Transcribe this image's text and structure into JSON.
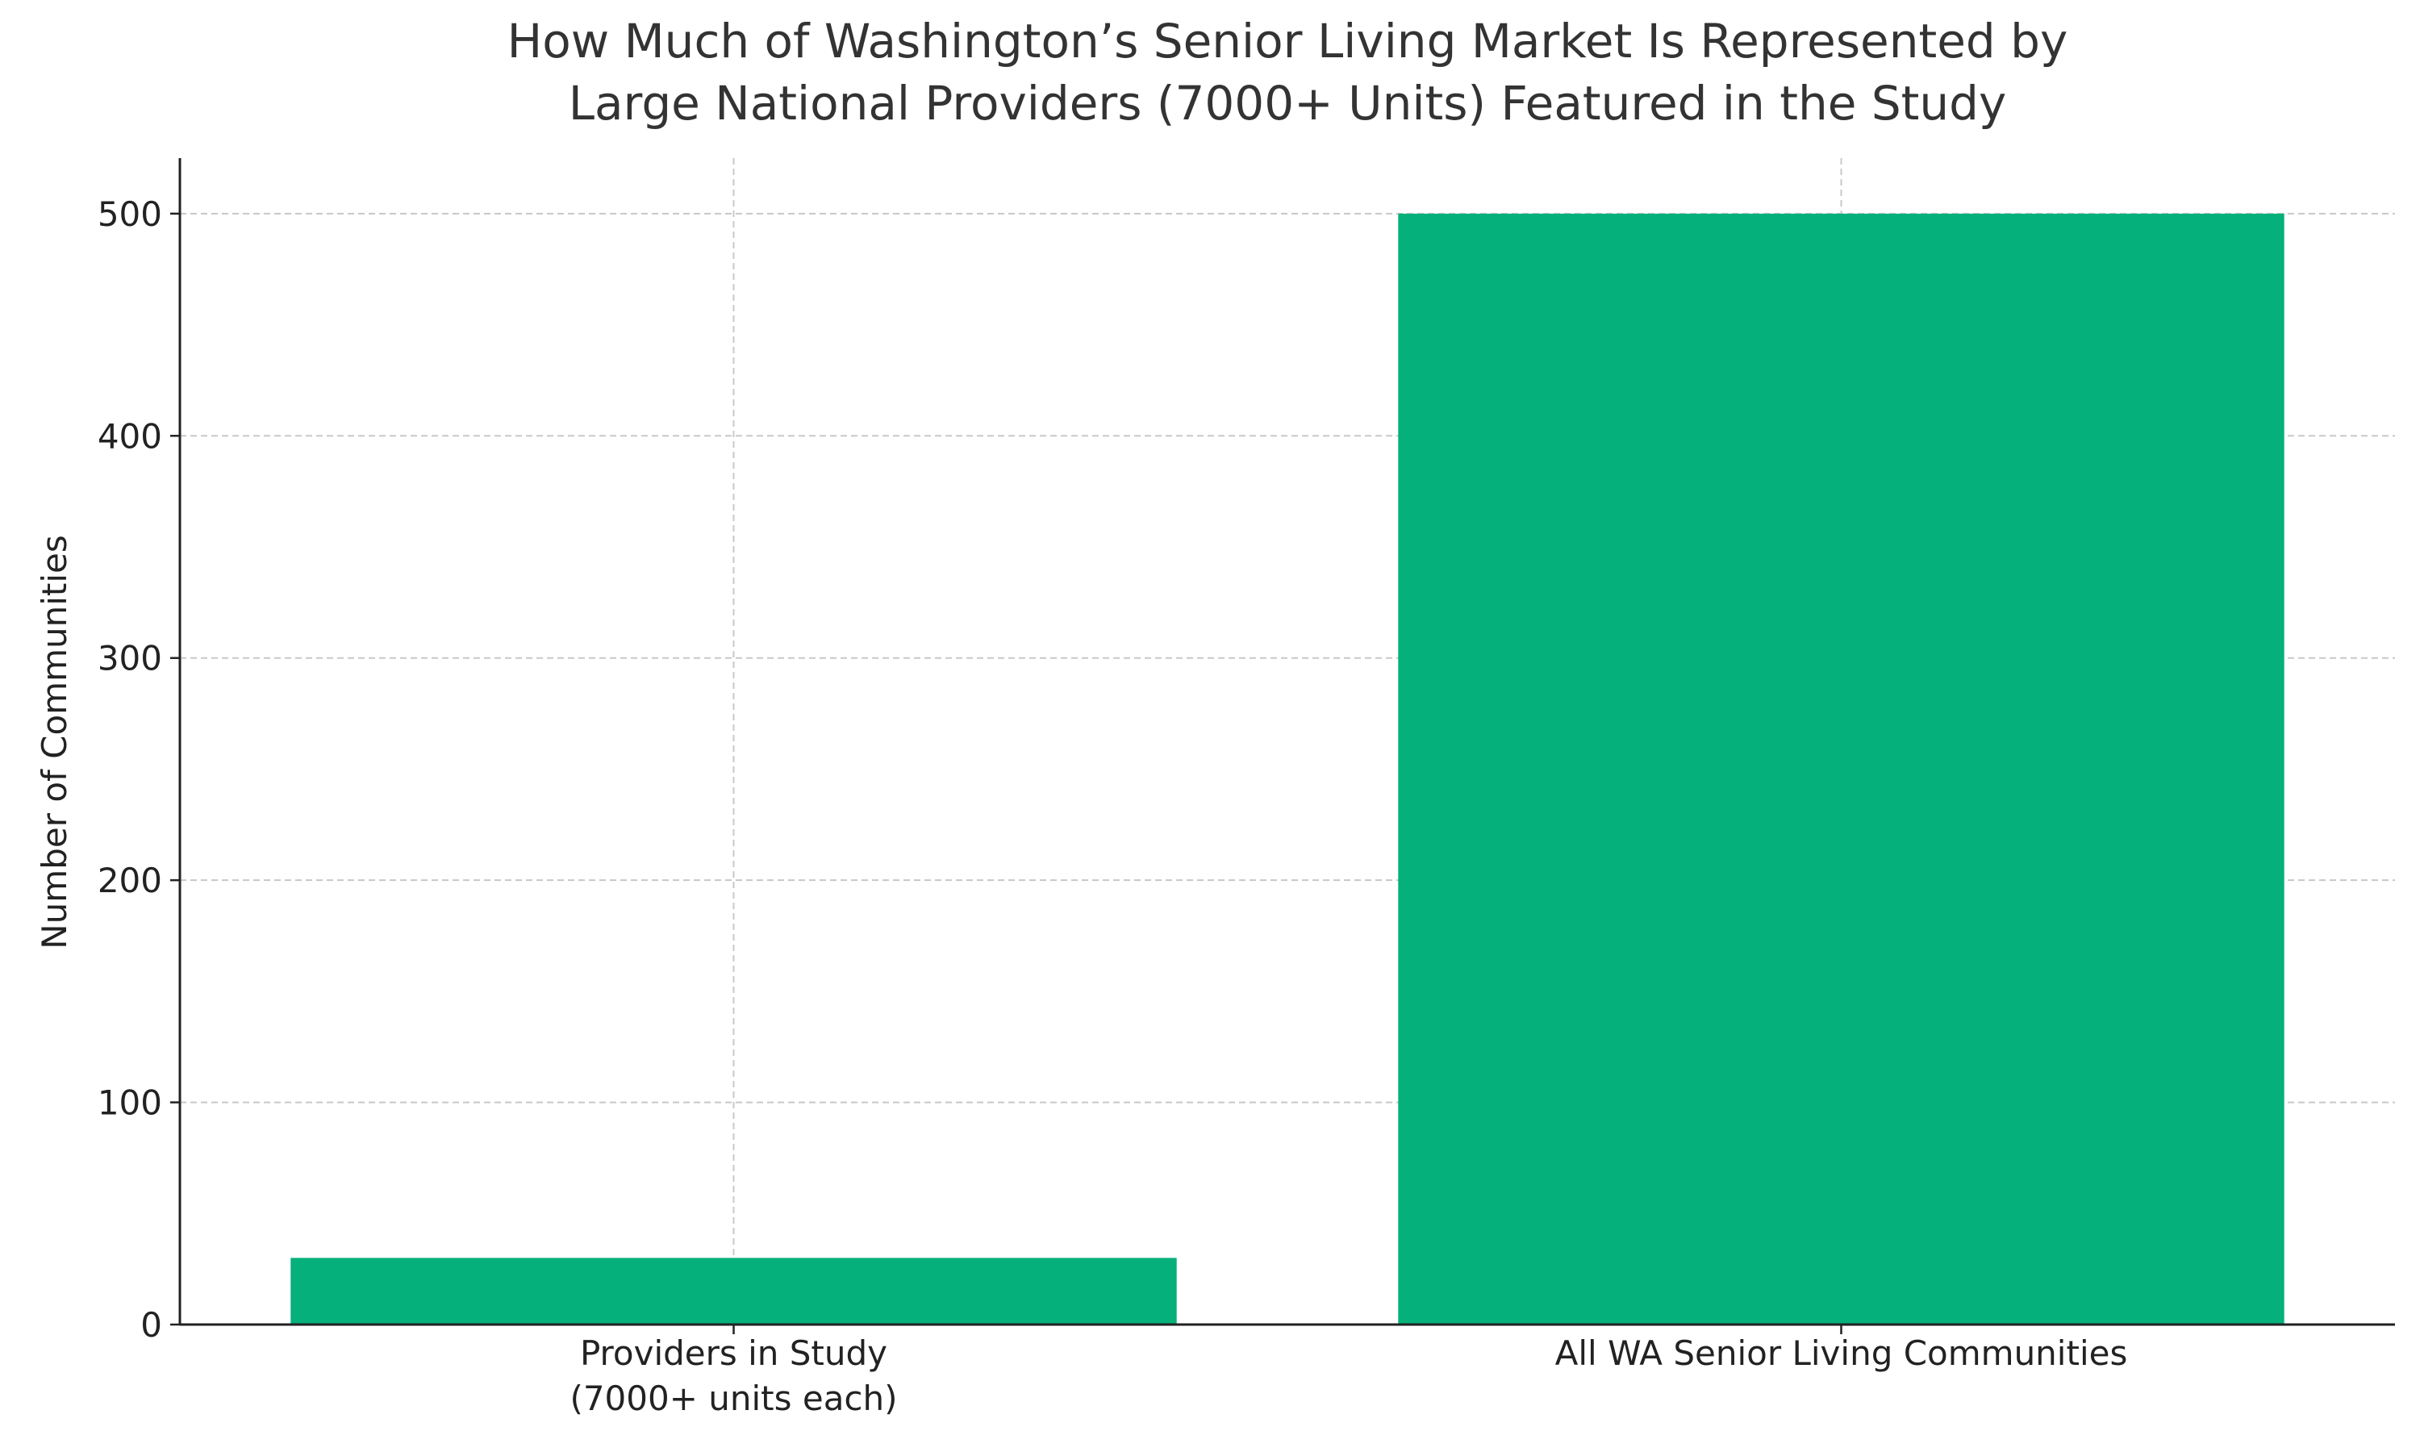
{
  "chart_data": {
    "type": "bar",
    "title": "How Much of Washington’s Senior Living Market Is Represented by\nLarge National Providers (7000+ Units) Featured in the Study",
    "y_label": "Number of Communities",
    "categories": [
      "Providers in Study\n(7000+ units each)",
      "All WA Senior Living Communities"
    ],
    "values": [
      30,
      500
    ],
    "color": "#06b07a",
    "ylim": [
      0,
      525
    ],
    "yticks": [
      0,
      100,
      200,
      300,
      400,
      500
    ],
    "grid": true
  }
}
